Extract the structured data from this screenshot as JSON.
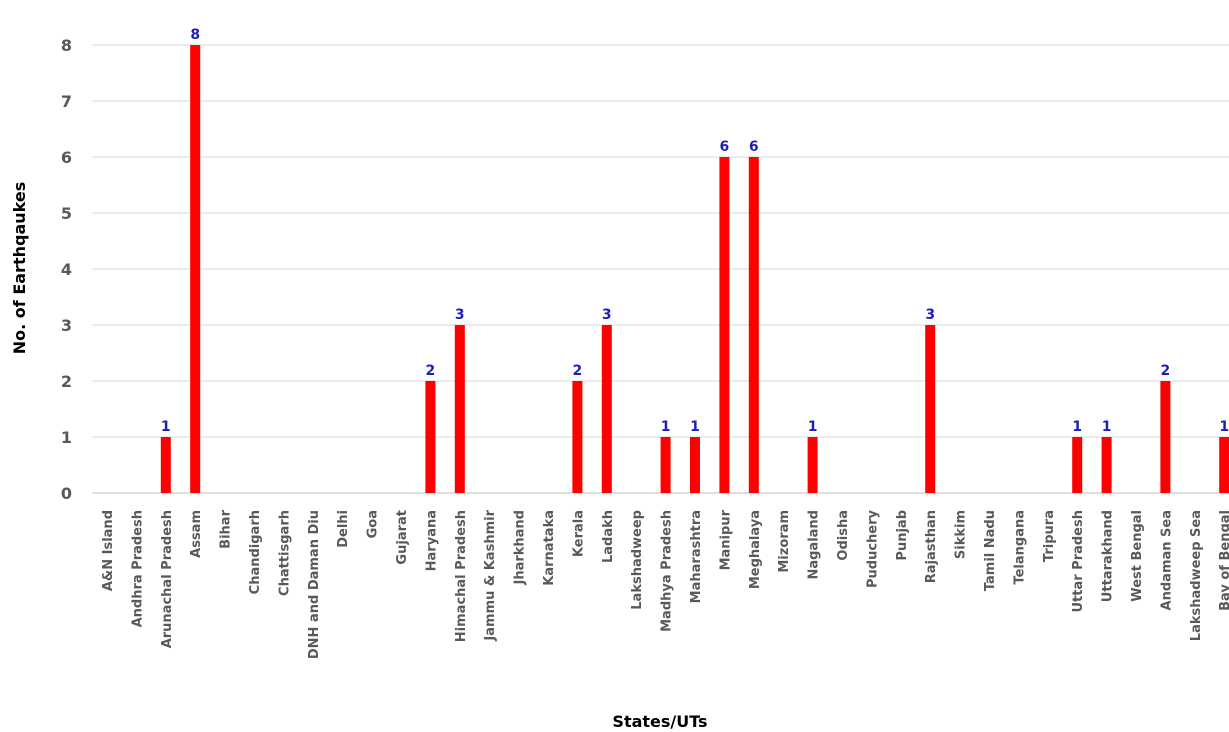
{
  "chart_data": {
    "type": "bar",
    "xlabel": "States/UTs",
    "ylabel": "No. of Earthqaukes",
    "ylim": [
      0,
      8
    ],
    "yticks": [
      "0",
      "1",
      "2",
      "3",
      "4",
      "5",
      "6",
      "7",
      "8"
    ],
    "grid": true,
    "bar_color": "#ff0000",
    "label_color": "#1f1fb4",
    "categories": [
      "A&N Island",
      "Andhra Pradesh",
      "Arunachal Pradesh",
      "Assam",
      "Bihar",
      "Chandigarh",
      "Chattisgarh",
      "DNH and Daman Diu",
      "Delhi",
      "Goa",
      "Gujarat",
      "Haryana",
      "Himachal Pradesh",
      "Jammu & Kashmir",
      "Jharkhand",
      "Karnataka",
      "Kerala",
      "Ladakh",
      "Lakshadweep",
      "Madhya Pradesh",
      "Maharashtra",
      "Manipur",
      "Meghalaya",
      "Mizoram",
      "Nagaland",
      "Odisha",
      "Puduchery",
      "Punjab",
      "Rajasthan",
      "Sikkim",
      "Tamil Nadu",
      "Telangana",
      "Tripura",
      "Uttar Pradesh",
      "Uttarakhand",
      "West Bengal",
      "Andaman Sea",
      "Lakshadweep Sea",
      "Bay of Bengal"
    ],
    "values": [
      0,
      0,
      1,
      8,
      0,
      0,
      0,
      0,
      0,
      0,
      0,
      2,
      3,
      0,
      0,
      0,
      2,
      3,
      0,
      1,
      1,
      6,
      6,
      0,
      1,
      0,
      0,
      0,
      3,
      0,
      0,
      0,
      0,
      1,
      1,
      0,
      2,
      0,
      1
    ]
  }
}
